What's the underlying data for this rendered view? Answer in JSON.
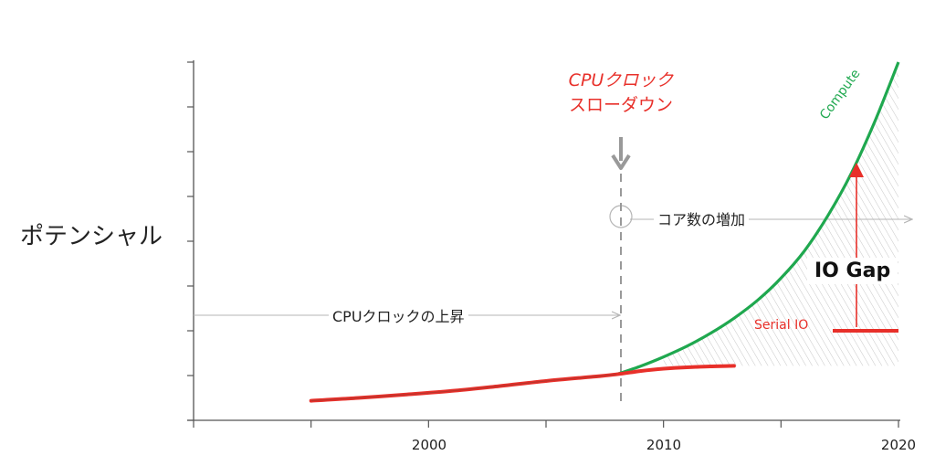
{
  "chart_data": {
    "type": "line",
    "ylabel": "ポテンシャル",
    "xlabel": "",
    "xlim": [
      1990,
      2020
    ],
    "x_ticks": [
      "2000",
      "2010",
      "2020"
    ],
    "series": [
      {
        "name": "Compute",
        "color": "#1fa84f",
        "x": [
          2008,
          2009,
          2010,
          2011,
          2012,
          2013,
          2014,
          2015,
          2016,
          2017,
          2018,
          2019,
          2020
        ],
        "y": [
          0.78,
          0.95,
          1.15,
          1.38,
          1.65,
          1.97,
          2.35,
          2.82,
          3.4,
          4.15,
          5.05,
          6.15,
          7.4
        ]
      },
      {
        "name": "Serial IO",
        "color": "#e8302a",
        "x": [
          1995,
          1997,
          1999,
          2001,
          2003,
          2005,
          2007,
          2008,
          2009,
          2010,
          2011,
          2012,
          2013
        ],
        "y": [
          0.22,
          0.28,
          0.35,
          0.43,
          0.53,
          0.64,
          0.73,
          0.78,
          0.85,
          0.9,
          0.93,
          0.95,
          0.96
        ]
      }
    ],
    "annotations": {
      "slowdown": [
        "CPUクロック",
        "スローダウン"
      ],
      "clock_rise": "CPUクロックの上昇",
      "core_increase": "コア数の増加",
      "gap": "IO Gap"
    }
  }
}
